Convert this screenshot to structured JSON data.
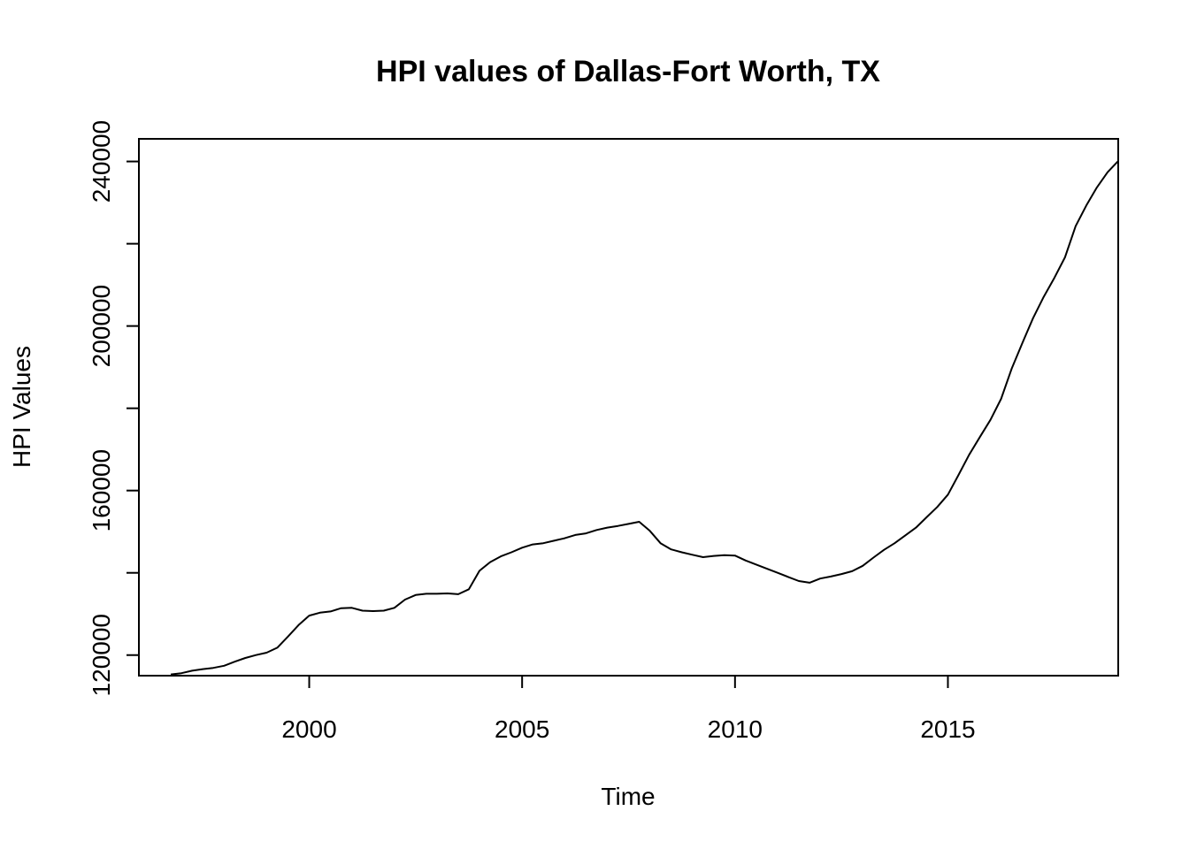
{
  "chart_data": {
    "type": "line",
    "title": "HPI values of Dallas-Fort Worth, TX",
    "xlabel": "Time",
    "ylabel": "HPI Values",
    "xlim": [
      1996.0,
      2019.0
    ],
    "ylim": [
      115000,
      245500
    ],
    "x_ticks": [
      2000,
      2005,
      2010,
      2015
    ],
    "x_tick_labels": [
      "2000",
      "2005",
      "2010",
      "2015"
    ],
    "y_ticks": [
      120000,
      140000,
      160000,
      180000,
      200000,
      220000,
      240000
    ],
    "y_tick_labels": [
      "120000",
      "",
      "160000",
      "",
      "200000",
      "",
      "240000"
    ],
    "grid": false,
    "series": [
      {
        "x": [
          1996.75,
          1997.0,
          1997.25,
          1997.5,
          1997.75,
          1998.0,
          1998.25,
          1998.5,
          1998.75,
          1999.0,
          1999.25,
          1999.5,
          1999.75,
          2000.0,
          2000.25,
          2000.5,
          2000.75,
          2001.0,
          2001.25,
          2001.5,
          2001.75,
          2002.0,
          2002.25,
          2002.5,
          2002.75,
          2003.0,
          2003.25,
          2003.5,
          2003.75,
          2004.0,
          2004.25,
          2004.5,
          2004.75,
          2005.0,
          2005.25,
          2005.5,
          2005.75,
          2006.0,
          2006.25,
          2006.5,
          2006.75,
          2007.0,
          2007.25,
          2007.5,
          2007.75,
          2008.0,
          2008.25,
          2008.5,
          2008.75,
          2009.0,
          2009.25,
          2009.5,
          2009.75,
          2010.0,
          2010.25,
          2010.5,
          2010.75,
          2011.0,
          2011.25,
          2011.5,
          2011.75,
          2012.0,
          2012.25,
          2012.5,
          2012.75,
          2013.0,
          2013.25,
          2013.5,
          2013.75,
          2014.0,
          2014.25,
          2014.5,
          2014.75,
          2015.0,
          2015.25,
          2015.5,
          2015.75,
          2016.0,
          2016.25,
          2016.5,
          2016.75,
          2017.0,
          2017.25,
          2017.5,
          2017.75,
          2018.0,
          2018.25,
          2018.5,
          2018.75,
          2019.0
        ],
        "values": [
          115300,
          115600,
          116200,
          116600,
          116900,
          117400,
          118400,
          119300,
          120000,
          120600,
          121800,
          124500,
          127300,
          129600,
          130300,
          130600,
          131400,
          131500,
          130800,
          130700,
          130800,
          131500,
          133500,
          134600,
          134900,
          134900,
          135000,
          134800,
          136000,
          140500,
          142600,
          144000,
          145000,
          146100,
          146900,
          147200,
          147800,
          148400,
          149200,
          149600,
          150400,
          151000,
          151400,
          151900,
          152400,
          150200,
          147200,
          145700,
          145000,
          144400,
          143800,
          144100,
          144300,
          144200,
          143000,
          142000,
          141000,
          140000,
          139000,
          138000,
          137600,
          138600,
          139100,
          139700,
          140400,
          141700,
          143700,
          145600,
          147200,
          149100,
          151000,
          153500,
          156000,
          159000,
          163800,
          168700,
          173000,
          177200,
          182300,
          189700,
          195900,
          201900,
          207100,
          211700,
          216700,
          224300,
          229300,
          233700,
          237400,
          240100
        ]
      }
    ]
  }
}
